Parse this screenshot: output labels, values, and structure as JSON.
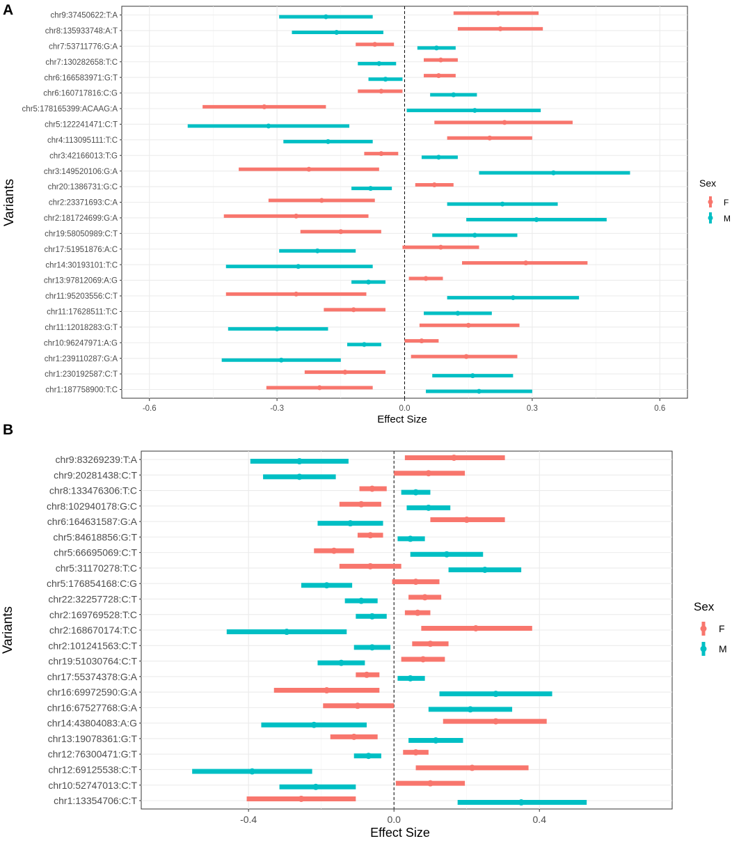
{
  "legend": {
    "title": "Sex",
    "labels": [
      "F",
      "M"
    ]
  },
  "colors": {
    "F": "#F8766D",
    "M": "#00BFC4"
  },
  "chart_data": [
    {
      "panel": "A",
      "type": "forest",
      "xlabel": "Effect Size",
      "ylabel": "Variants",
      "xlim": [
        -0.665,
        0.665
      ],
      "xticks": [
        -0.6,
        -0.3,
        0.0,
        0.3,
        0.6
      ],
      "xtick_labels": [
        "-0.6",
        "-0.3",
        "0.0",
        "0.3",
        "0.6"
      ],
      "variants": [
        {
          "name": "chr9:37450622:T:A",
          "F": {
            "est": 0.22,
            "lo": 0.115,
            "hi": 0.315
          },
          "M": {
            "est": -0.185,
            "lo": -0.295,
            "hi": -0.075
          }
        },
        {
          "name": "chr8:135933748:A:T",
          "F": {
            "est": 0.225,
            "lo": 0.125,
            "hi": 0.325
          },
          "M": {
            "est": -0.16,
            "lo": -0.265,
            "hi": -0.05
          }
        },
        {
          "name": "chr7:53711776:G:A",
          "F": {
            "est": -0.07,
            "lo": -0.115,
            "hi": -0.025
          },
          "M": {
            "est": 0.075,
            "lo": 0.03,
            "hi": 0.12
          }
        },
        {
          "name": "chr7:130282658:T:C",
          "F": {
            "est": 0.085,
            "lo": 0.045,
            "hi": 0.125
          },
          "M": {
            "est": -0.06,
            "lo": -0.11,
            "hi": -0.02
          }
        },
        {
          "name": "chr6:166583971:G:T",
          "F": {
            "est": 0.08,
            "lo": 0.045,
            "hi": 0.12
          },
          "M": {
            "est": -0.045,
            "lo": -0.085,
            "hi": -0.005
          }
        },
        {
          "name": "chr6:160717816:C:G",
          "F": {
            "est": -0.055,
            "lo": -0.11,
            "hi": -0.005
          },
          "M": {
            "est": 0.115,
            "lo": 0.06,
            "hi": 0.17
          }
        },
        {
          "name": "chr5:178165399:ACAAG:A",
          "F": {
            "est": -0.33,
            "lo": -0.475,
            "hi": -0.185
          },
          "M": {
            "est": 0.165,
            "lo": 0.005,
            "hi": 0.32
          }
        },
        {
          "name": "chr5:122241471:C:T",
          "F": {
            "est": 0.235,
            "lo": 0.07,
            "hi": 0.395
          },
          "M": {
            "est": -0.32,
            "lo": -0.51,
            "hi": -0.13
          }
        },
        {
          "name": "chr4:113095111:T:C",
          "F": {
            "est": 0.2,
            "lo": 0.1,
            "hi": 0.3
          },
          "M": {
            "est": -0.18,
            "lo": -0.285,
            "hi": -0.075
          }
        },
        {
          "name": "chr3:42166013:T:G",
          "F": {
            "est": -0.055,
            "lo": -0.095,
            "hi": -0.015
          },
          "M": {
            "est": 0.08,
            "lo": 0.04,
            "hi": 0.125
          }
        },
        {
          "name": "chr3:149520106:G:A",
          "F": {
            "est": -0.225,
            "lo": -0.39,
            "hi": -0.06
          },
          "M": {
            "est": 0.35,
            "lo": 0.175,
            "hi": 0.53
          }
        },
        {
          "name": "chr20:1386731:G:C",
          "F": {
            "est": 0.07,
            "lo": 0.025,
            "hi": 0.115
          },
          "M": {
            "est": -0.08,
            "lo": -0.125,
            "hi": -0.03
          }
        },
        {
          "name": "chr2:23371693:C:A",
          "F": {
            "est": -0.195,
            "lo": -0.32,
            "hi": -0.07
          },
          "M": {
            "est": 0.23,
            "lo": 0.1,
            "hi": 0.36
          }
        },
        {
          "name": "chr2:181724699:G:A",
          "F": {
            "est": -0.255,
            "lo": -0.425,
            "hi": -0.085
          },
          "M": {
            "est": 0.31,
            "lo": 0.145,
            "hi": 0.475
          }
        },
        {
          "name": "chr19:58050989:C:T",
          "F": {
            "est": -0.15,
            "lo": -0.245,
            "hi": -0.055
          },
          "M": {
            "est": 0.165,
            "lo": 0.065,
            "hi": 0.265
          }
        },
        {
          "name": "chr17:51951876:A:C",
          "F": {
            "est": 0.085,
            "lo": -0.005,
            "hi": 0.175
          },
          "M": {
            "est": -0.205,
            "lo": -0.295,
            "hi": -0.115
          }
        },
        {
          "name": "chr14:30193101:T:C",
          "F": {
            "est": 0.285,
            "lo": 0.135,
            "hi": 0.43
          },
          "M": {
            "est": -0.25,
            "lo": -0.42,
            "hi": -0.075
          }
        },
        {
          "name": "chr13:97812069:A:G",
          "F": {
            "est": 0.05,
            "lo": 0.01,
            "hi": 0.09
          },
          "M": {
            "est": -0.085,
            "lo": -0.125,
            "hi": -0.045
          }
        },
        {
          "name": "chr11:95203556:C:T",
          "F": {
            "est": -0.255,
            "lo": -0.42,
            "hi": -0.09
          },
          "M": {
            "est": 0.255,
            "lo": 0.1,
            "hi": 0.41
          }
        },
        {
          "name": "chr11:17628511:T:C",
          "F": {
            "est": -0.12,
            "lo": -0.19,
            "hi": -0.045
          },
          "M": {
            "est": 0.125,
            "lo": 0.045,
            "hi": 0.205
          }
        },
        {
          "name": "chr11:12018283:G:T",
          "F": {
            "est": 0.15,
            "lo": 0.035,
            "hi": 0.27
          },
          "M": {
            "est": -0.3,
            "lo": -0.415,
            "hi": -0.18
          }
        },
        {
          "name": "chr10:96247971:A:G",
          "F": {
            "est": 0.04,
            "lo": 0.0,
            "hi": 0.08
          },
          "M": {
            "est": -0.095,
            "lo": -0.135,
            "hi": -0.055
          }
        },
        {
          "name": "chr1:239110287:G:A",
          "F": {
            "est": 0.145,
            "lo": 0.015,
            "hi": 0.265
          },
          "M": {
            "est": -0.29,
            "lo": -0.43,
            "hi": -0.15
          }
        },
        {
          "name": "chr1:230192587:C:T",
          "F": {
            "est": -0.14,
            "lo": -0.235,
            "hi": -0.045
          },
          "M": {
            "est": 0.16,
            "lo": 0.065,
            "hi": 0.255
          }
        },
        {
          "name": "chr1:187758900:T:C",
          "F": {
            "est": -0.2,
            "lo": -0.325,
            "hi": -0.075
          },
          "M": {
            "est": 0.175,
            "lo": 0.05,
            "hi": 0.3
          }
        }
      ]
    },
    {
      "panel": "B",
      "type": "forest",
      "xlabel": "Effect Size",
      "ylabel": "Variants",
      "xlim": [
        -0.695,
        0.765
      ],
      "xticks": [
        -0.4,
        0.0,
        0.4
      ],
      "xtick_labels": [
        "-0.4",
        "0.0",
        "0.4"
      ],
      "variants": [
        {
          "name": "chr9:83269239:T:A",
          "F": {
            "est": 0.165,
            "lo": 0.03,
            "hi": 0.305
          },
          "M": {
            "est": -0.26,
            "lo": -0.395,
            "hi": -0.125
          }
        },
        {
          "name": "chr9:20281438:C:T",
          "F": {
            "est": 0.095,
            "lo": 0.0,
            "hi": 0.195
          },
          "M": {
            "est": -0.26,
            "lo": -0.36,
            "hi": -0.16
          }
        },
        {
          "name": "chr8:133476306:T:C",
          "F": {
            "est": -0.06,
            "lo": -0.095,
            "hi": -0.02
          },
          "M": {
            "est": 0.06,
            "lo": 0.02,
            "hi": 0.1
          }
        },
        {
          "name": "chr8:102940178:G:C",
          "F": {
            "est": -0.09,
            "lo": -0.15,
            "hi": -0.035
          },
          "M": {
            "est": 0.095,
            "lo": 0.035,
            "hi": 0.155
          }
        },
        {
          "name": "chr6:164631587:G:A",
          "F": {
            "est": 0.2,
            "lo": 0.1,
            "hi": 0.305
          },
          "M": {
            "est": -0.12,
            "lo": -0.21,
            "hi": -0.03
          }
        },
        {
          "name": "chr5:84618856:G:T",
          "F": {
            "est": -0.065,
            "lo": -0.1,
            "hi": -0.03
          },
          "M": {
            "est": 0.045,
            "lo": 0.01,
            "hi": 0.085
          }
        },
        {
          "name": "chr5:66695069:C:T",
          "F": {
            "est": -0.165,
            "lo": -0.22,
            "hi": -0.11
          },
          "M": {
            "est": 0.145,
            "lo": 0.045,
            "hi": 0.245
          }
        },
        {
          "name": "chr5:31170278:T:C",
          "F": {
            "est": -0.065,
            "lo": -0.15,
            "hi": 0.02
          },
          "M": {
            "est": 0.25,
            "lo": 0.15,
            "hi": 0.35
          }
        },
        {
          "name": "chr5:176854168:C:G",
          "F": {
            "est": 0.06,
            "lo": -0.005,
            "hi": 0.125
          },
          "M": {
            "est": -0.185,
            "lo": -0.255,
            "hi": -0.115
          }
        },
        {
          "name": "chr22:32257728:C:T",
          "F": {
            "est": 0.085,
            "lo": 0.04,
            "hi": 0.13
          },
          "M": {
            "est": -0.09,
            "lo": -0.135,
            "hi": -0.045
          }
        },
        {
          "name": "chr2:169769528:T:C",
          "F": {
            "est": 0.065,
            "lo": 0.03,
            "hi": 0.1
          },
          "M": {
            "est": -0.06,
            "lo": -0.105,
            "hi": -0.02
          }
        },
        {
          "name": "chr2:168670174:T:C",
          "F": {
            "est": 0.225,
            "lo": 0.075,
            "hi": 0.38
          },
          "M": {
            "est": -0.295,
            "lo": -0.46,
            "hi": -0.13
          }
        },
        {
          "name": "chr2:101241563:C:T",
          "F": {
            "est": 0.1,
            "lo": 0.05,
            "hi": 0.15
          },
          "M": {
            "est": -0.06,
            "lo": -0.11,
            "hi": -0.01
          }
        },
        {
          "name": "chr19:51030764:C:T",
          "F": {
            "est": 0.08,
            "lo": 0.02,
            "hi": 0.14
          },
          "M": {
            "est": -0.145,
            "lo": -0.21,
            "hi": -0.08
          }
        },
        {
          "name": "chr17:55374378:G:A",
          "F": {
            "est": -0.075,
            "lo": -0.105,
            "hi": -0.04
          },
          "M": {
            "est": 0.045,
            "lo": 0.01,
            "hi": 0.085
          }
        },
        {
          "name": "chr16:69972590:G:A",
          "F": {
            "est": -0.185,
            "lo": -0.33,
            "hi": -0.04
          },
          "M": {
            "est": 0.28,
            "lo": 0.125,
            "hi": 0.435
          }
        },
        {
          "name": "chr16:67527768:G:A",
          "F": {
            "est": -0.1,
            "lo": -0.195,
            "hi": 0.0
          },
          "M": {
            "est": 0.21,
            "lo": 0.095,
            "hi": 0.325
          }
        },
        {
          "name": "chr14:43804083:A:G",
          "F": {
            "est": 0.28,
            "lo": 0.135,
            "hi": 0.42
          },
          "M": {
            "est": -0.22,
            "lo": -0.365,
            "hi": -0.075
          }
        },
        {
          "name": "chr13:19078361:G:T",
          "F": {
            "est": -0.11,
            "lo": -0.175,
            "hi": -0.045
          },
          "M": {
            "est": 0.115,
            "lo": 0.04,
            "hi": 0.19
          }
        },
        {
          "name": "chr12:76300471:G:T",
          "F": {
            "est": 0.06,
            "lo": 0.025,
            "hi": 0.095
          },
          "M": {
            "est": -0.07,
            "lo": -0.11,
            "hi": -0.035
          }
        },
        {
          "name": "chr12:69125538:C:T",
          "F": {
            "est": 0.215,
            "lo": 0.06,
            "hi": 0.37
          },
          "M": {
            "est": -0.39,
            "lo": -0.555,
            "hi": -0.225
          }
        },
        {
          "name": "chr10:52747013:C:T",
          "F": {
            "est": 0.1,
            "lo": 0.005,
            "hi": 0.195
          },
          "M": {
            "est": -0.215,
            "lo": -0.315,
            "hi": -0.105
          }
        },
        {
          "name": "chr1:13354706:C:T",
          "F": {
            "est": -0.255,
            "lo": -0.405,
            "hi": -0.105
          },
          "M": {
            "est": 0.35,
            "lo": 0.175,
            "hi": 0.53
          }
        }
      ]
    }
  ]
}
